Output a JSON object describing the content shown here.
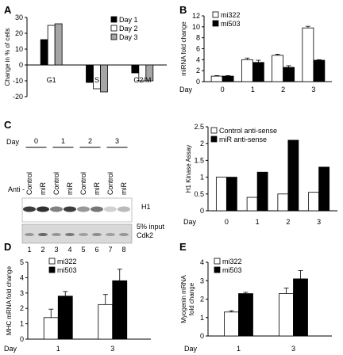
{
  "panels": {
    "A": "A",
    "B": "B",
    "C": "C",
    "D": "D",
    "E": "E"
  },
  "colors": {
    "day1": "#000000",
    "day2": "#ffffff",
    "day3": "#a6a6a6",
    "mi322": "#ffffff",
    "mi503": "#000000",
    "control": "#ffffff",
    "miR": "#000000",
    "blot_bg": "#ffffff",
    "blot_bg2": "#d9d9d9",
    "band": "#1a1a1a"
  },
  "blot": {
    "day_label": "Day",
    "days": [
      "0",
      "1",
      "2",
      "3"
    ],
    "anti_label": "Anti -",
    "lane_labels": [
      "Control",
      "miR",
      "Control",
      "miR",
      "Control",
      "miR",
      "Control",
      "miR"
    ],
    "h1_label": "H1",
    "input_label": "5% input",
    "cdk2_label": "Cdk2",
    "lane_numbers": [
      "1",
      "2",
      "3",
      "4",
      "5",
      "6",
      "7",
      "8"
    ],
    "h1_intensity": [
      0.85,
      0.9,
      0.55,
      0.85,
      0.45,
      0.6,
      0.2,
      0.3
    ],
    "cdk2_intensity": [
      0.35,
      0.6,
      0.35,
      0.5,
      0.3,
      0.4,
      0.3,
      0.35
    ]
  },
  "chart_data": [
    {
      "panel": "A",
      "type": "bar",
      "categories": [
        "G1",
        "S",
        "G2/M"
      ],
      "series": [
        {
          "name": "Day 1",
          "values": [
            16,
            -11,
            -5
          ]
        },
        {
          "name": "Day 2",
          "values": [
            25,
            -15,
            -10
          ]
        },
        {
          "name": "Day 3",
          "values": [
            26,
            -17,
            -10
          ]
        }
      ],
      "ylabel": "Change in % of cells",
      "ylim": [
        -20,
        30
      ],
      "yticks": [
        "-20",
        "-10",
        "0",
        "10",
        "20",
        "30"
      ],
      "legend": "top-right"
    },
    {
      "panel": "B",
      "type": "bar",
      "categories": [
        "0",
        "1",
        "2",
        "3"
      ],
      "xlabel": "Day",
      "series": [
        {
          "name": "mi322",
          "values": [
            1.0,
            4.0,
            4.8,
            9.8
          ],
          "errors": [
            0.1,
            0.3,
            0.2,
            0.3
          ]
        },
        {
          "name": "mi503",
          "values": [
            1.0,
            3.5,
            2.6,
            3.9
          ],
          "errors": [
            0.1,
            0.4,
            0.3,
            0.1
          ]
        }
      ],
      "ylabel": "miRNA fold change",
      "ylim": [
        0,
        12
      ],
      "yticks": [
        "0",
        "2",
        "4",
        "6",
        "8",
        "10",
        "12"
      ],
      "legend": "top-left"
    },
    {
      "panel": "C",
      "type": "bar",
      "categories": [
        "0",
        "1",
        "2",
        "3"
      ],
      "xlabel": "Day",
      "series": [
        {
          "name": "Control anti-sense",
          "values": [
            1.0,
            0.4,
            0.5,
            0.55
          ]
        },
        {
          "name": "miR anti-sense",
          "values": [
            1.0,
            1.15,
            2.1,
            1.3
          ]
        }
      ],
      "ylabel": "H1 Kinase Assay",
      "ylim": [
        0,
        2.5
      ],
      "yticks": [
        "0",
        "0.5",
        "1",
        "1.5",
        "2",
        "2.5"
      ],
      "legend": "top"
    },
    {
      "panel": "D",
      "type": "bar",
      "categories": [
        "1",
        "3"
      ],
      "xlabel": "Day",
      "series": [
        {
          "name": "mi322",
          "values": [
            1.4,
            2.25
          ],
          "errors": [
            0.55,
            0.65
          ]
        },
        {
          "name": "mi503",
          "values": [
            2.8,
            3.8
          ],
          "errors": [
            0.3,
            0.75
          ]
        }
      ],
      "ylabel": "MHC mRNA fold change",
      "ylim": [
        0,
        5
      ],
      "yticks": [
        "0",
        "1",
        "2",
        "3",
        "4",
        "5"
      ],
      "legend": "top-left"
    },
    {
      "panel": "E",
      "type": "bar",
      "categories": [
        "1",
        "3"
      ],
      "xlabel": "Day",
      "series": [
        {
          "name": "mi322",
          "values": [
            1.3,
            2.3
          ],
          "errors": [
            0.07,
            0.3
          ]
        },
        {
          "name": "mi503",
          "values": [
            2.3,
            3.1
          ],
          "errors": [
            0.07,
            0.45
          ]
        }
      ],
      "ylabel": "Myogenin mRNA fold change",
      "ylabel_lines": [
        "Myogenin mRNA",
        "fold change"
      ],
      "ylim": [
        0,
        4
      ],
      "yticks": [
        "0",
        "1",
        "2",
        "3",
        "4"
      ],
      "legend": "top-left"
    }
  ]
}
